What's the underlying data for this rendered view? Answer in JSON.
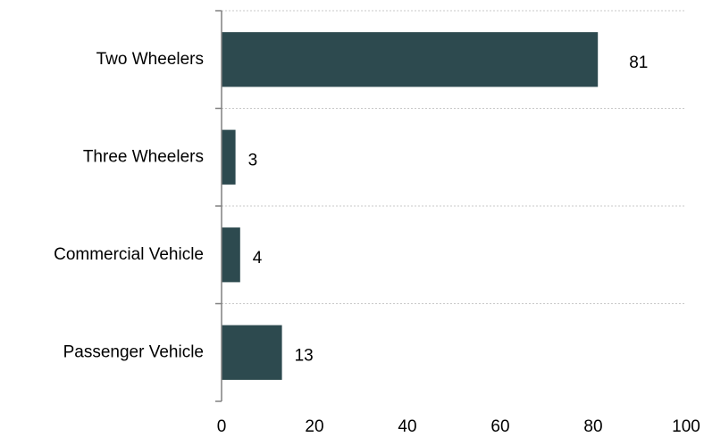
{
  "chart_data": {
    "type": "bar",
    "orientation": "horizontal",
    "categories": [
      "Two Wheelers",
      "Three Wheelers",
      "Commercial Vehicle",
      "Passenger Vehicle"
    ],
    "values": [
      81,
      3,
      4,
      13
    ],
    "data_labels": [
      "81",
      "3",
      "4",
      "13"
    ],
    "xlim": [
      0,
      100
    ],
    "xticks": [
      "0",
      "20",
      "40",
      "60",
      "80",
      "100"
    ],
    "grid": "vertical-none, horizontal-dashed",
    "bar_color": "#2d4a4f",
    "title": "",
    "xlabel": "",
    "ylabel": ""
  }
}
